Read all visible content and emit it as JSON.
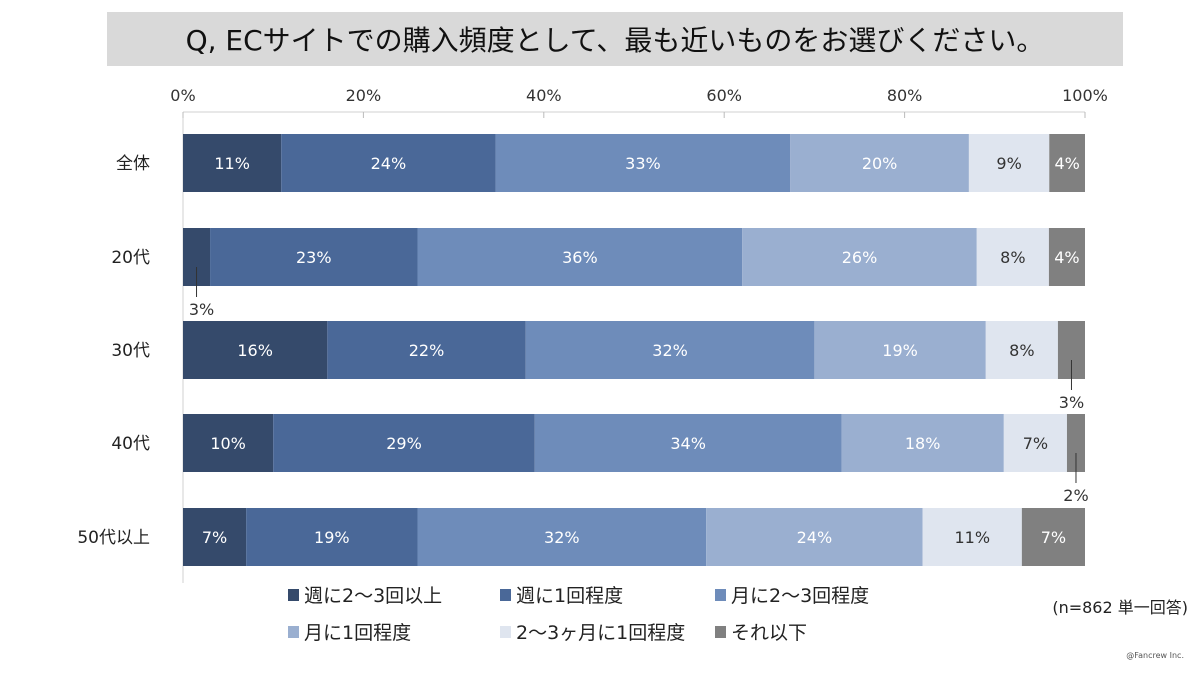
{
  "title": "Q, ECサイトでの購入頻度として、最も近いものをお選びください。",
  "note": "(n=862 単一回答)",
  "credit": "@Fancrew Inc.",
  "chart_data": {
    "type": "bar",
    "orientation": "horizontal",
    "stacked": "100%",
    "title": "Q, ECサイトでの購入頻度として、最も近いものをお選びください。",
    "categories": [
      "全体",
      "20代",
      "30代",
      "40代",
      "50代以上"
    ],
    "xlim": [
      0,
      100
    ],
    "xticks": [
      "0%",
      "20%",
      "40%",
      "60%",
      "80%",
      "100%"
    ],
    "legend_position": "bottom",
    "series": [
      {
        "name": "週に2～3回以上",
        "color": "#354a6b",
        "values": [
          11,
          3,
          16,
          10,
          7
        ]
      },
      {
        "name": "週に1回程度",
        "color": "#4a6898",
        "values": [
          24,
          23,
          22,
          29,
          19
        ]
      },
      {
        "name": "月に2～3回程度",
        "color": "#6e8cba",
        "values": [
          33,
          36,
          32,
          34,
          32
        ]
      },
      {
        "name": "月に1回程度",
        "color": "#9aafd0",
        "values": [
          20,
          26,
          19,
          18,
          24
        ]
      },
      {
        "name": "2～3ヶ月に1回程度",
        "color": "#dfe5ef",
        "values": [
          9,
          8,
          8,
          7,
          11
        ]
      },
      {
        "name": "それ以下",
        "color": "#808080",
        "values": [
          4,
          4,
          3,
          2,
          7
        ]
      }
    ]
  }
}
